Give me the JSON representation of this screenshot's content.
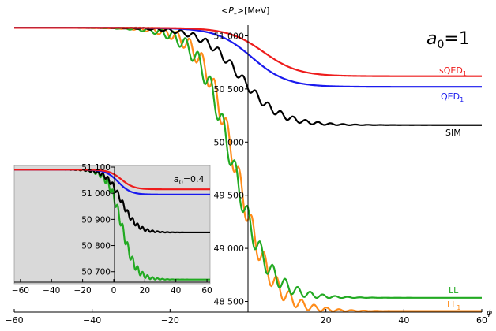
{
  "chart_data": [
    {
      "type": "line",
      "ylabel_prefix": "<",
      "ylabel_var": "P",
      "ylabel_sub": "–",
      "ylabel_suffix": ">[MeV]",
      "xlabel": "ϕ",
      "annotation_base": "a",
      "annotation_sub": "0",
      "annotation_value": "=1",
      "xlim": [
        -60,
        60
      ],
      "ylim": [
        48400,
        51100
      ],
      "xticks": [
        -60,
        -40,
        -20,
        20,
        40,
        60
      ],
      "yticks": [
        48500,
        49000,
        49500,
        50000,
        50500,
        51000
      ],
      "ytick_labels": [
        "48 500",
        "49 000",
        "49 500",
        "50 000",
        "50 500",
        "51 000"
      ],
      "series": [
        {
          "label_base": "sQED",
          "label_sub": "1",
          "color": "#ee1c1c",
          "start": 51075,
          "end": 50620,
          "x0": 4,
          "w": 9,
          "steps": false
        },
        {
          "label_base": "QED",
          "label_sub": "1",
          "color": "#1a1aee",
          "start": 51075,
          "end": 50520,
          "x0": 1,
          "w": 9,
          "steps": false
        },
        {
          "label_base": "SIM",
          "label_sub": "",
          "color": "#000000",
          "start": 51075,
          "end": 50160,
          "x0": -2,
          "w": 10,
          "steps": true
        },
        {
          "label_base": "LL",
          "label_sub": "",
          "color": "#22aa22",
          "start": 51075,
          "end": 48535,
          "x0": -4,
          "w": 9,
          "steps": true
        },
        {
          "label_base": "LL",
          "label_sub": "1",
          "color": "#ff8c1a",
          "start": 51075,
          "end": 48410,
          "x0": -3,
          "w": 9,
          "steps": true
        }
      ]
    },
    {
      "type": "line",
      "annotation_base": "a",
      "annotation_sub": "0",
      "annotation_value": "=0.4",
      "xlim": [
        -64,
        62
      ],
      "ylim": [
        50660,
        51100
      ],
      "xticks": [
        -60,
        -40,
        -20,
        0,
        20,
        40,
        60
      ],
      "yticks": [
        50700,
        50800,
        50900,
        51000,
        51100
      ],
      "ytick_labels": [
        "50 700",
        "50 800",
        "50 900",
        "51 000",
        "51 100"
      ],
      "background": "#d9d9d9",
      "series": [
        {
          "color": "#ee1c1c",
          "start": 51090,
          "end": 51015,
          "x0": 5,
          "w": 8,
          "steps": false
        },
        {
          "color": "#1a1aee",
          "start": 51090,
          "end": 50995,
          "x0": 3,
          "w": 8,
          "steps": false
        },
        {
          "color": "#000000",
          "start": 51090,
          "end": 50850,
          "x0": 5,
          "w": 10,
          "steps": true
        },
        {
          "color": "#22aa22",
          "start": 51090,
          "end": 50670,
          "x0": 5,
          "w": 9,
          "steps": true
        }
      ]
    }
  ]
}
